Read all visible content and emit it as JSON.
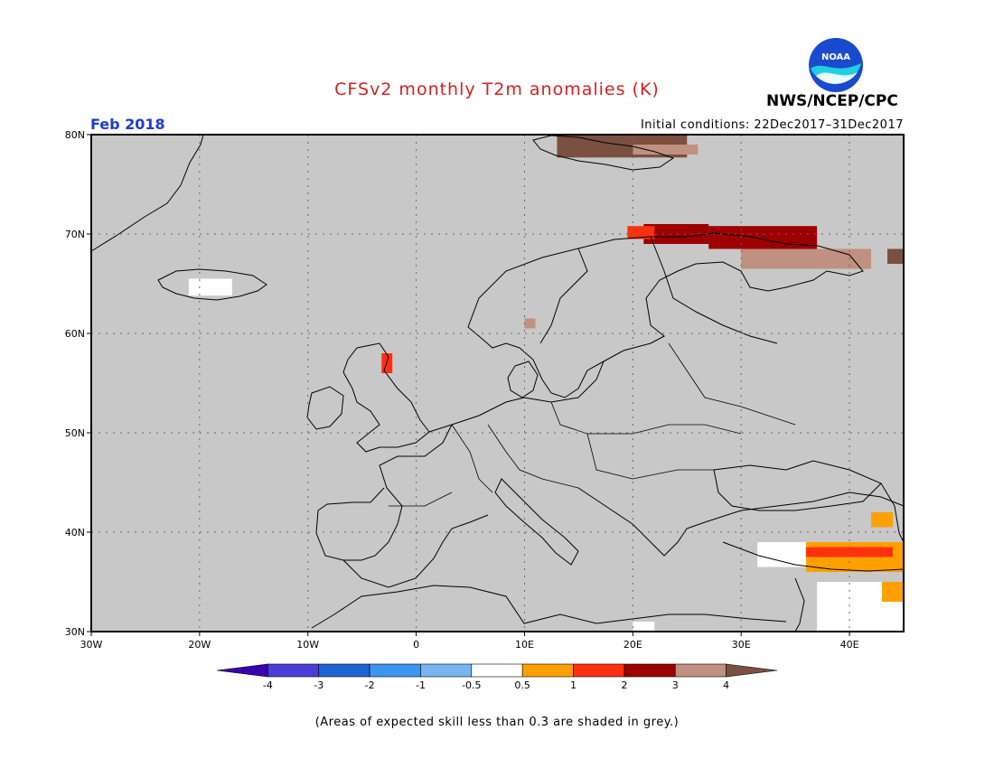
{
  "header": {
    "title": "CFSv2 monthly T2m anomalies (K)",
    "valid_month": "Feb 2018",
    "initial_conditions": "Initial conditions: 22Dec2017–31Dec2017",
    "org": "NWS/NCEP/CPC",
    "logo_text": "NOAA"
  },
  "map": {
    "lon_range": [
      -30,
      45
    ],
    "lat_range": [
      30,
      80
    ],
    "lon_ticks": [
      {
        "value": -30,
        "label": "30W"
      },
      {
        "value": -20,
        "label": "20W"
      },
      {
        "value": -10,
        "label": "10W"
      },
      {
        "value": 0,
        "label": "0"
      },
      {
        "value": 10,
        "label": "10E"
      },
      {
        "value": 20,
        "label": "20E"
      },
      {
        "value": 30,
        "label": "30E"
      },
      {
        "value": 40,
        "label": "40E"
      }
    ],
    "lat_ticks": [
      {
        "value": 30,
        "label": "30N"
      },
      {
        "value": 40,
        "label": "40N"
      },
      {
        "value": 50,
        "label": "50N"
      },
      {
        "value": 60,
        "label": "60N"
      },
      {
        "value": 70,
        "label": "70N"
      },
      {
        "value": 80,
        "label": "80N"
      }
    ],
    "background_color": "#c8c8c8",
    "anomaly_regions": [
      {
        "name": "svalbard",
        "color": "#7a5040",
        "lon": [
          13,
          25
        ],
        "lat": [
          77.7,
          80
        ]
      },
      {
        "name": "svalbard-east",
        "color": "#c09080",
        "lon": [
          20,
          26
        ],
        "lat": [
          78,
          79
        ]
      },
      {
        "name": "north-norway",
        "color": "#9c0000",
        "lon": [
          21,
          27
        ],
        "lat": [
          69,
          71
        ]
      },
      {
        "name": "north-norway-west",
        "color": "#ff3010",
        "lon": [
          19.5,
          22
        ],
        "lat": [
          69.5,
          70.8
        ]
      },
      {
        "name": "kola",
        "color": "#9c0000",
        "lon": [
          27,
          37
        ],
        "lat": [
          68.5,
          70.8
        ]
      },
      {
        "name": "kola-south",
        "color": "#c09080",
        "lon": [
          30,
          42
        ],
        "lat": [
          66.5,
          68.5
        ]
      },
      {
        "name": "russia-east",
        "color": "#7a5040",
        "lon": [
          43.5,
          45
        ],
        "lat": [
          67,
          68.5
        ]
      },
      {
        "name": "norway-south",
        "color": "#c09080",
        "lon": [
          10,
          11
        ],
        "lat": [
          60.5,
          61.5
        ]
      },
      {
        "name": "scotland",
        "color": "#ff3010",
        "lon": [
          -3.2,
          -2.2
        ],
        "lat": [
          56,
          58
        ]
      },
      {
        "name": "iceland",
        "color": "#ffffff",
        "lon": [
          -21,
          -17
        ],
        "lat": [
          63.8,
          65.5
        ]
      },
      {
        "name": "turkey-white",
        "color": "#ffffff",
        "lon": [
          31.5,
          37
        ],
        "lat": [
          36.5,
          39
        ]
      },
      {
        "name": "turkey-orange",
        "color": "#ffa000",
        "lon": [
          36,
          45
        ],
        "lat": [
          36,
          39
        ]
      },
      {
        "name": "turkey-red",
        "color": "#ff3010",
        "lon": [
          36,
          44
        ],
        "lat": [
          37.5,
          38.5
        ]
      },
      {
        "name": "caucasus-orange",
        "color": "#ffa000",
        "lon": [
          42,
          44
        ],
        "lat": [
          40.5,
          42
        ]
      },
      {
        "name": "mideast-white",
        "color": "#ffffff",
        "lon": [
          37,
          45
        ],
        "lat": [
          30,
          35
        ]
      },
      {
        "name": "mideast-orange",
        "color": "#ffa000",
        "lon": [
          43,
          45
        ],
        "lat": [
          33,
          35
        ]
      },
      {
        "name": "egypt-white",
        "color": "#ffffff",
        "lon": [
          20,
          22
        ],
        "lat": [
          30,
          31
        ]
      }
    ]
  },
  "colorbar": {
    "labels": [
      "-4",
      "-3",
      "-2",
      "-1",
      "-0.5",
      "0.5",
      "1",
      "2",
      "3",
      "4"
    ],
    "colors": [
      "#3a00b0",
      "#4a3ed6",
      "#1e64d2",
      "#3c96f0",
      "#78b4f0",
      "#ffffff",
      "#ffa000",
      "#ff3010",
      "#9c0000",
      "#c09080",
      "#7a5040"
    ]
  },
  "footnote": "(Areas of expected skill less than 0.3 are shaded in grey.)"
}
